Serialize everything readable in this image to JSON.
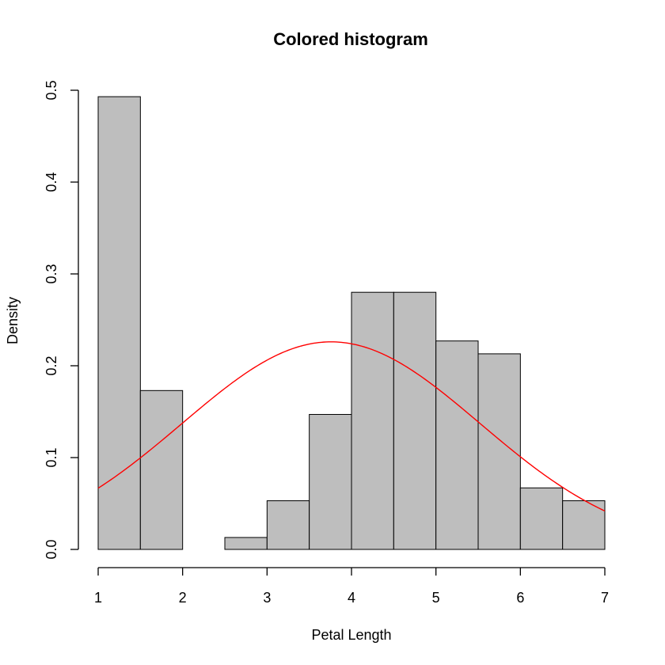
{
  "chart_data": {
    "type": "bar",
    "title": "Colored histogram",
    "xlabel": "Petal Length",
    "ylabel": "Density",
    "xlim": [
      1,
      7
    ],
    "ylim": [
      0,
      0.5
    ],
    "x_ticks": [
      1,
      2,
      3,
      4,
      5,
      6,
      7
    ],
    "y_ticks": [
      "0.0",
      "0.1",
      "0.2",
      "0.3",
      "0.4",
      "0.5"
    ],
    "grid": false,
    "bar_color": "#bebebe",
    "curve_color": "#ff0000",
    "bins": [
      {
        "start": 1.0,
        "end": 1.5,
        "density": 0.493
      },
      {
        "start": 1.5,
        "end": 2.0,
        "density": 0.173
      },
      {
        "start": 2.0,
        "end": 2.5,
        "density": 0.0
      },
      {
        "start": 2.5,
        "end": 3.0,
        "density": 0.013
      },
      {
        "start": 3.0,
        "end": 3.5,
        "density": 0.053
      },
      {
        "start": 3.5,
        "end": 4.0,
        "density": 0.147
      },
      {
        "start": 4.0,
        "end": 4.5,
        "density": 0.28
      },
      {
        "start": 4.5,
        "end": 5.0,
        "density": 0.28
      },
      {
        "start": 5.0,
        "end": 5.5,
        "density": 0.227
      },
      {
        "start": 5.5,
        "end": 6.0,
        "density": 0.213
      },
      {
        "start": 6.0,
        "end": 6.5,
        "density": 0.067
      },
      {
        "start": 6.5,
        "end": 7.0,
        "density": 0.053
      }
    ],
    "overlay": {
      "type": "normal-density",
      "mean": 3.758,
      "sd": 1.765
    }
  }
}
